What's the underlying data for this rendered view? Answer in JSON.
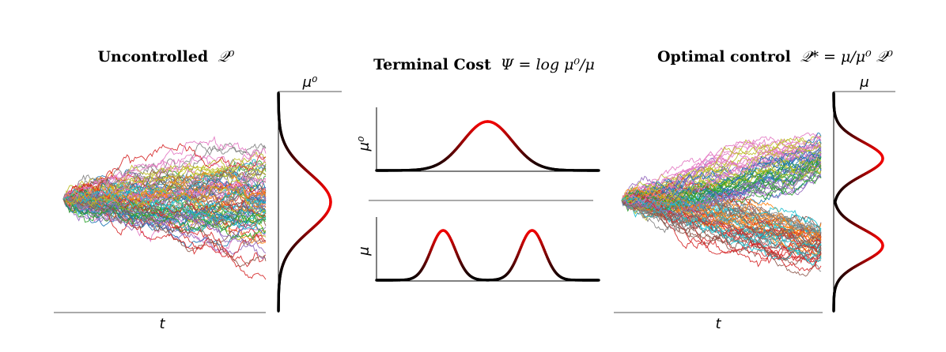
{
  "left_panel": {
    "title_bold": "Uncontrolled",
    "title_math": "𝒬⁰",
    "x_label": "t",
    "density_label": "μ⁰"
  },
  "middle_panel": {
    "title_bold": "Terminal Cost",
    "title_math": "Ψ = log μ⁰/μ",
    "top_label": "μ⁰",
    "bottom_label": "μ"
  },
  "right_panel": {
    "title_bold": "Optimal control",
    "title_math": "𝒬* = μ/μ⁰ 𝒬⁰",
    "x_label": "t",
    "density_label": "μ"
  },
  "colors": {
    "density_peak": "#ee0000",
    "density_tail": "#000000",
    "paths": [
      "#1f77b4",
      "#ff7f0e",
      "#2ca02c",
      "#d62728",
      "#9467bd",
      "#8c564b",
      "#e377c2",
      "#7f7f7f",
      "#bcbd22",
      "#17becf"
    ]
  }
}
